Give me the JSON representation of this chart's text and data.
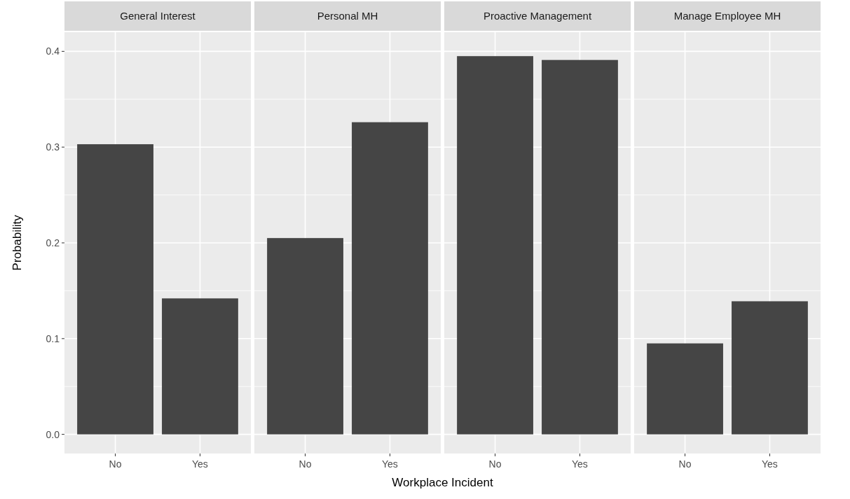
{
  "chart_data": [
    {
      "type": "bar",
      "title": "General Interest",
      "categories": [
        "No",
        "Yes"
      ],
      "values": [
        0.303,
        0.142
      ],
      "color": "#454545",
      "ylim": [
        -0.02,
        0.42
      ],
      "yticks": [
        {
          "value": 0,
          "label": "0.0"
        },
        0.1,
        0.2,
        0.3,
        0.4
      ],
      "grid": true,
      "ylabel": "Probability"
    },
    {
      "type": "bar",
      "title": "Personal MH",
      "categories": [
        "No",
        "Yes"
      ],
      "values": [
        0.205,
        0.326
      ],
      "color": "#454545",
      "ylim": [
        -0.02,
        0.42
      ],
      "yticks": [
        0,
        0.1,
        0.2,
        0.3,
        0.4
      ],
      "grid": true,
      "tick_labels": "x",
      "xlabel": "Workplace Incident"
    },
    {
      "type": "bar",
      "title": "Proactive Management",
      "categories": [
        "No",
        "Yes"
      ],
      "values": [
        0.395,
        0.391
      ],
      "color": "#454545",
      "ylim": [
        -0.02,
        0.42
      ],
      "yticks": [
        0,
        0.1,
        0.2,
        0.3,
        0.4
      ],
      "grid": true,
      "tick_labels": "x"
    },
    {
      "type": "bar",
      "title": "Manage Employee MH",
      "categories": [
        "No",
        "Yes"
      ],
      "values": [
        0.095,
        0.139
      ],
      "color": "#454545",
      "ylim": [
        -0.02,
        0.42
      ],
      "yticks": [
        0,
        0.1,
        0.2,
        0.3,
        0.4
      ],
      "grid": true,
      "tick_labels": "x"
    }
  ]
}
